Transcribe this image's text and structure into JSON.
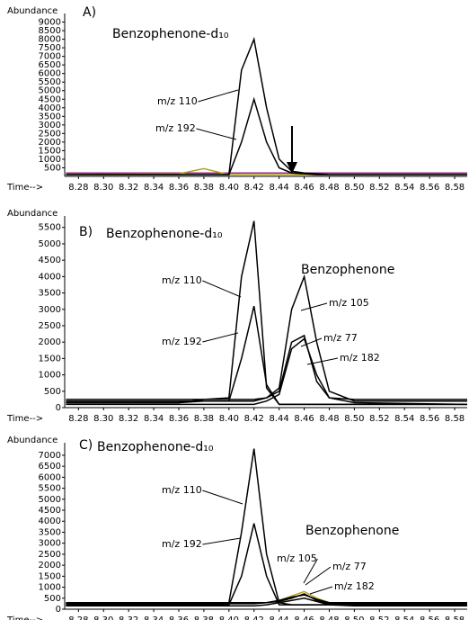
{
  "chart_data": [
    {
      "type": "line",
      "panel_label": "A)",
      "y_label": "Abundance",
      "x_label": "Time-->",
      "annotations": [
        "Benzophenone-d₁₀"
      ],
      "x": [
        8.27,
        8.36,
        8.38,
        8.4,
        8.41,
        8.42,
        8.43,
        8.44,
        8.45,
        8.46,
        8.47,
        8.48,
        8.5,
        8.59
      ],
      "xlim": [
        8.269,
        8.59
      ],
      "ylim": [
        0,
        9500
      ],
      "xticks": [
        8.28,
        {
          "value": 8.3,
          "label": "8.30"
        },
        8.32,
        8.34,
        8.36,
        8.38,
        {
          "value": 8.4,
          "label": "8.40"
        },
        8.42,
        8.44,
        8.46,
        8.48,
        {
          "value": 8.5,
          "label": "8.50"
        },
        8.52,
        8.54,
        8.56,
        8.58
      ],
      "yticks": [
        500,
        1000,
        1500,
        2000,
        2500,
        3000,
        3500,
        4000,
        4500,
        5000,
        5500,
        6000,
        6500,
        7000,
        7500,
        8000,
        8500,
        9000
      ],
      "series": [
        {
          "color": "#9a2a8a",
          "values": [
            200,
            200,
            200,
            200,
            200,
            200,
            200,
            200,
            200,
            200,
            200,
            200,
            200,
            200
          ]
        },
        {
          "color": "#b5a31a",
          "values": [
            100,
            150,
            450,
            100,
            100,
            100,
            100,
            100,
            100,
            100,
            100,
            100,
            100,
            100
          ]
        },
        {
          "name": "m/z 110",
          "color": "#000000",
          "values": [
            100,
            100,
            100,
            100,
            6200,
            8000,
            4000,
            1000,
            300,
            200,
            150,
            100,
            100,
            100
          ]
        },
        {
          "name": "m/z 192",
          "color": "#000000",
          "values": [
            100,
            100,
            100,
            100,
            2000,
            4500,
            2000,
            500,
            200,
            150,
            100,
            100,
            100,
            100
          ]
        }
      ]
    },
    {
      "type": "line",
      "panel_label": "B)",
      "y_label": "Abundance",
      "x_label": "Time-->",
      "annotations": [
        "Benzophenone-d₁₀",
        "Benzophenone"
      ],
      "x": [
        8.27,
        8.36,
        8.38,
        8.4,
        8.41,
        8.42,
        8.43,
        8.44,
        8.45,
        8.46,
        8.47,
        8.48,
        8.5,
        8.59
      ],
      "xlim": [
        8.269,
        8.59
      ],
      "ylim": [
        0,
        5850
      ],
      "xticks": [
        8.28,
        {
          "value": 8.3,
          "label": "8.30"
        },
        8.32,
        8.34,
        8.36,
        8.38,
        {
          "value": 8.4,
          "label": "8.40"
        },
        8.42,
        8.44,
        8.46,
        8.48,
        {
          "value": 8.5,
          "label": "8.50"
        },
        8.52,
        8.54,
        8.56,
        8.58
      ],
      "yticks": [
        0,
        500,
        1000,
        1500,
        2000,
        2500,
        3000,
        3500,
        4000,
        4500,
        5000,
        5500
      ],
      "series": [
        {
          "name": "m/z 110",
          "color": "#000000",
          "values": [
            150,
            150,
            250,
            300,
            4000,
            5700,
            600,
            100,
            100,
            100,
            100,
            100,
            100,
            100
          ]
        },
        {
          "name": "m/z 192",
          "color": "#000000",
          "values": [
            150,
            150,
            200,
            200,
            1500,
            3100,
            700,
            100,
            100,
            100,
            100,
            100,
            100,
            100
          ]
        },
        {
          "name": "m/z 105",
          "color": "#000000",
          "values": [
            200,
            200,
            200,
            200,
            200,
            200,
            300,
            600,
            3000,
            4000,
            2000,
            500,
            200,
            200
          ]
        },
        {
          "name": "m/z 77",
          "color": "#000000",
          "values": [
            250,
            250,
            250,
            250,
            250,
            250,
            300,
            500,
            2000,
            2200,
            800,
            300,
            250,
            250
          ]
        },
        {
          "name": "m/z 182",
          "color": "#000000",
          "values": [
            100,
            100,
            100,
            100,
            100,
            100,
            200,
            400,
            1800,
            2100,
            1000,
            300,
            150,
            100
          ]
        }
      ]
    },
    {
      "type": "line",
      "panel_label": "C)",
      "y_label": "Abundance",
      "x_label": "Time-->",
      "annotations": [
        "Benzophenone-d₁₀",
        "Benzophenone"
      ],
      "x": [
        8.27,
        8.36,
        8.38,
        8.4,
        8.41,
        8.42,
        8.43,
        8.44,
        8.45,
        8.46,
        8.47,
        8.48,
        8.5,
        8.59
      ],
      "xlim": [
        8.269,
        8.59
      ],
      "ylim": [
        0,
        7570
      ],
      "xticks": [
        8.28,
        {
          "value": 8.3,
          "label": "8.30"
        },
        8.32,
        8.34,
        8.36,
        8.38,
        {
          "value": 8.4,
          "label": "8.40"
        },
        8.42,
        8.44,
        8.46,
        8.48,
        {
          "value": 8.5,
          "label": "8.50"
        },
        8.52,
        8.54,
        8.56,
        8.58
      ],
      "yticks": [
        0,
        500,
        1000,
        1500,
        2000,
        2500,
        3000,
        3500,
        4000,
        4500,
        5000,
        5500,
        6000,
        6500,
        7000
      ],
      "series": [
        {
          "color": "#b5a31a",
          "values": [
            300,
            300,
            300,
            300,
            300,
            300,
            300,
            400,
            600,
            800,
            500,
            300,
            300,
            300
          ]
        },
        {
          "name": "m/z 110",
          "color": "#000000",
          "values": [
            200,
            200,
            250,
            300,
            3500,
            7300,
            2500,
            300,
            200,
            200,
            200,
            200,
            200,
            200
          ]
        },
        {
          "name": "m/z 192",
          "color": "#000000",
          "values": [
            200,
            200,
            200,
            200,
            1500,
            3900,
            1500,
            200,
            200,
            200,
            200,
            200,
            200,
            200
          ]
        },
        {
          "name": "m/z 105",
          "color": "#000000",
          "values": [
            250,
            250,
            250,
            250,
            250,
            250,
            300,
            350,
            500,
            700,
            400,
            250,
            250,
            250
          ]
        },
        {
          "name": "m/z 77",
          "color": "#000000",
          "values": [
            300,
            300,
            300,
            300,
            300,
            300,
            300,
            400,
            550,
            650,
            450,
            300,
            300,
            300
          ]
        },
        {
          "name": "m/z 182",
          "color": "#000000",
          "values": [
            150,
            150,
            150,
            150,
            150,
            150,
            200,
            300,
            400,
            500,
            350,
            200,
            150,
            150
          ]
        }
      ]
    }
  ]
}
